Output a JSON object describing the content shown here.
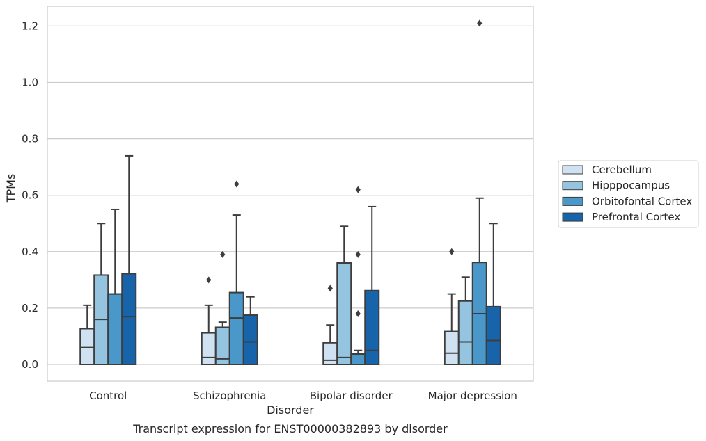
{
  "chart_data": {
    "type": "box",
    "caption": "Transcript expression for ENST00000382893 by disorder",
    "xlabel": "Disorder",
    "ylabel": "TPMs",
    "ylim": [
      -0.06,
      1.27
    ],
    "yticks": [
      0.0,
      0.2,
      0.4,
      0.6,
      0.8,
      1.0,
      1.2
    ],
    "ytick_labels": [
      "0.0",
      "0.2",
      "0.4",
      "0.6",
      "0.8",
      "1.0",
      "1.2"
    ],
    "grid": "horizontal",
    "legend_position": "right",
    "categories": [
      "Control",
      "Schizophrenia",
      "Bipolar disorder",
      "Major depression"
    ],
    "series": [
      {
        "name": "Cerebellum",
        "color": "#d0e1f2",
        "boxes": [
          {
            "q1": 0.0,
            "median": 0.06,
            "q3": 0.127,
            "whisker_low": 0.0,
            "whisker_high": 0.21,
            "outliers": []
          },
          {
            "q1": 0.0,
            "median": 0.025,
            "q3": 0.112,
            "whisker_low": 0.0,
            "whisker_high": 0.21,
            "outliers": [
              0.3
            ]
          },
          {
            "q1": 0.0,
            "median": 0.015,
            "q3": 0.077,
            "whisker_low": 0.0,
            "whisker_high": 0.14,
            "outliers": [
              0.27
            ]
          },
          {
            "q1": 0.0,
            "median": 0.04,
            "q3": 0.117,
            "whisker_low": 0.0,
            "whisker_high": 0.25,
            "outliers": [
              0.4
            ]
          }
        ]
      },
      {
        "name": "Hipppocampus",
        "color": "#94c4df",
        "boxes": [
          {
            "q1": 0.0,
            "median": 0.16,
            "q3": 0.317,
            "whisker_low": 0.0,
            "whisker_high": 0.5,
            "outliers": []
          },
          {
            "q1": 0.0,
            "median": 0.02,
            "q3": 0.132,
            "whisker_low": 0.0,
            "whisker_high": 0.15,
            "outliers": [
              0.39
            ]
          },
          {
            "q1": 0.0,
            "median": 0.025,
            "q3": 0.36,
            "whisker_low": 0.0,
            "whisker_high": 0.49,
            "outliers": []
          },
          {
            "q1": 0.0,
            "median": 0.08,
            "q3": 0.225,
            "whisker_low": 0.0,
            "whisker_high": 0.31,
            "outliers": []
          }
        ]
      },
      {
        "name": "Orbitofontal Cortex",
        "color": "#4a98c9",
        "boxes": [
          {
            "q1": 0.0,
            "median": 0.25,
            "q3": 0.25,
            "whisker_low": 0.0,
            "whisker_high": 0.55,
            "outliers": []
          },
          {
            "q1": 0.0,
            "median": 0.165,
            "q3": 0.255,
            "whisker_low": 0.0,
            "whisker_high": 0.53,
            "outliers": [
              0.64
            ]
          },
          {
            "q1": 0.0,
            "median": 0.0,
            "q3": 0.037,
            "whisker_low": 0.0,
            "whisker_high": 0.05,
            "outliers": [
              0.18,
              0.39,
              0.62
            ]
          },
          {
            "q1": 0.0,
            "median": 0.18,
            "q3": 0.362,
            "whisker_low": 0.0,
            "whisker_high": 0.59,
            "outliers": [
              1.21
            ]
          }
        ]
      },
      {
        "name": "Prefrontal Cortex",
        "color": "#1764ab",
        "boxes": [
          {
            "q1": 0.0,
            "median": 0.17,
            "q3": 0.322,
            "whisker_low": 0.0,
            "whisker_high": 0.74,
            "outliers": []
          },
          {
            "q1": 0.0,
            "median": 0.08,
            "q3": 0.175,
            "whisker_low": 0.0,
            "whisker_high": 0.24,
            "outliers": []
          },
          {
            "q1": 0.0,
            "median": 0.05,
            "q3": 0.262,
            "whisker_low": 0.0,
            "whisker_high": 0.56,
            "outliers": []
          },
          {
            "q1": 0.0,
            "median": 0.085,
            "q3": 0.205,
            "whisker_low": 0.0,
            "whisker_high": 0.5,
            "outliers": []
          }
        ]
      }
    ]
  }
}
